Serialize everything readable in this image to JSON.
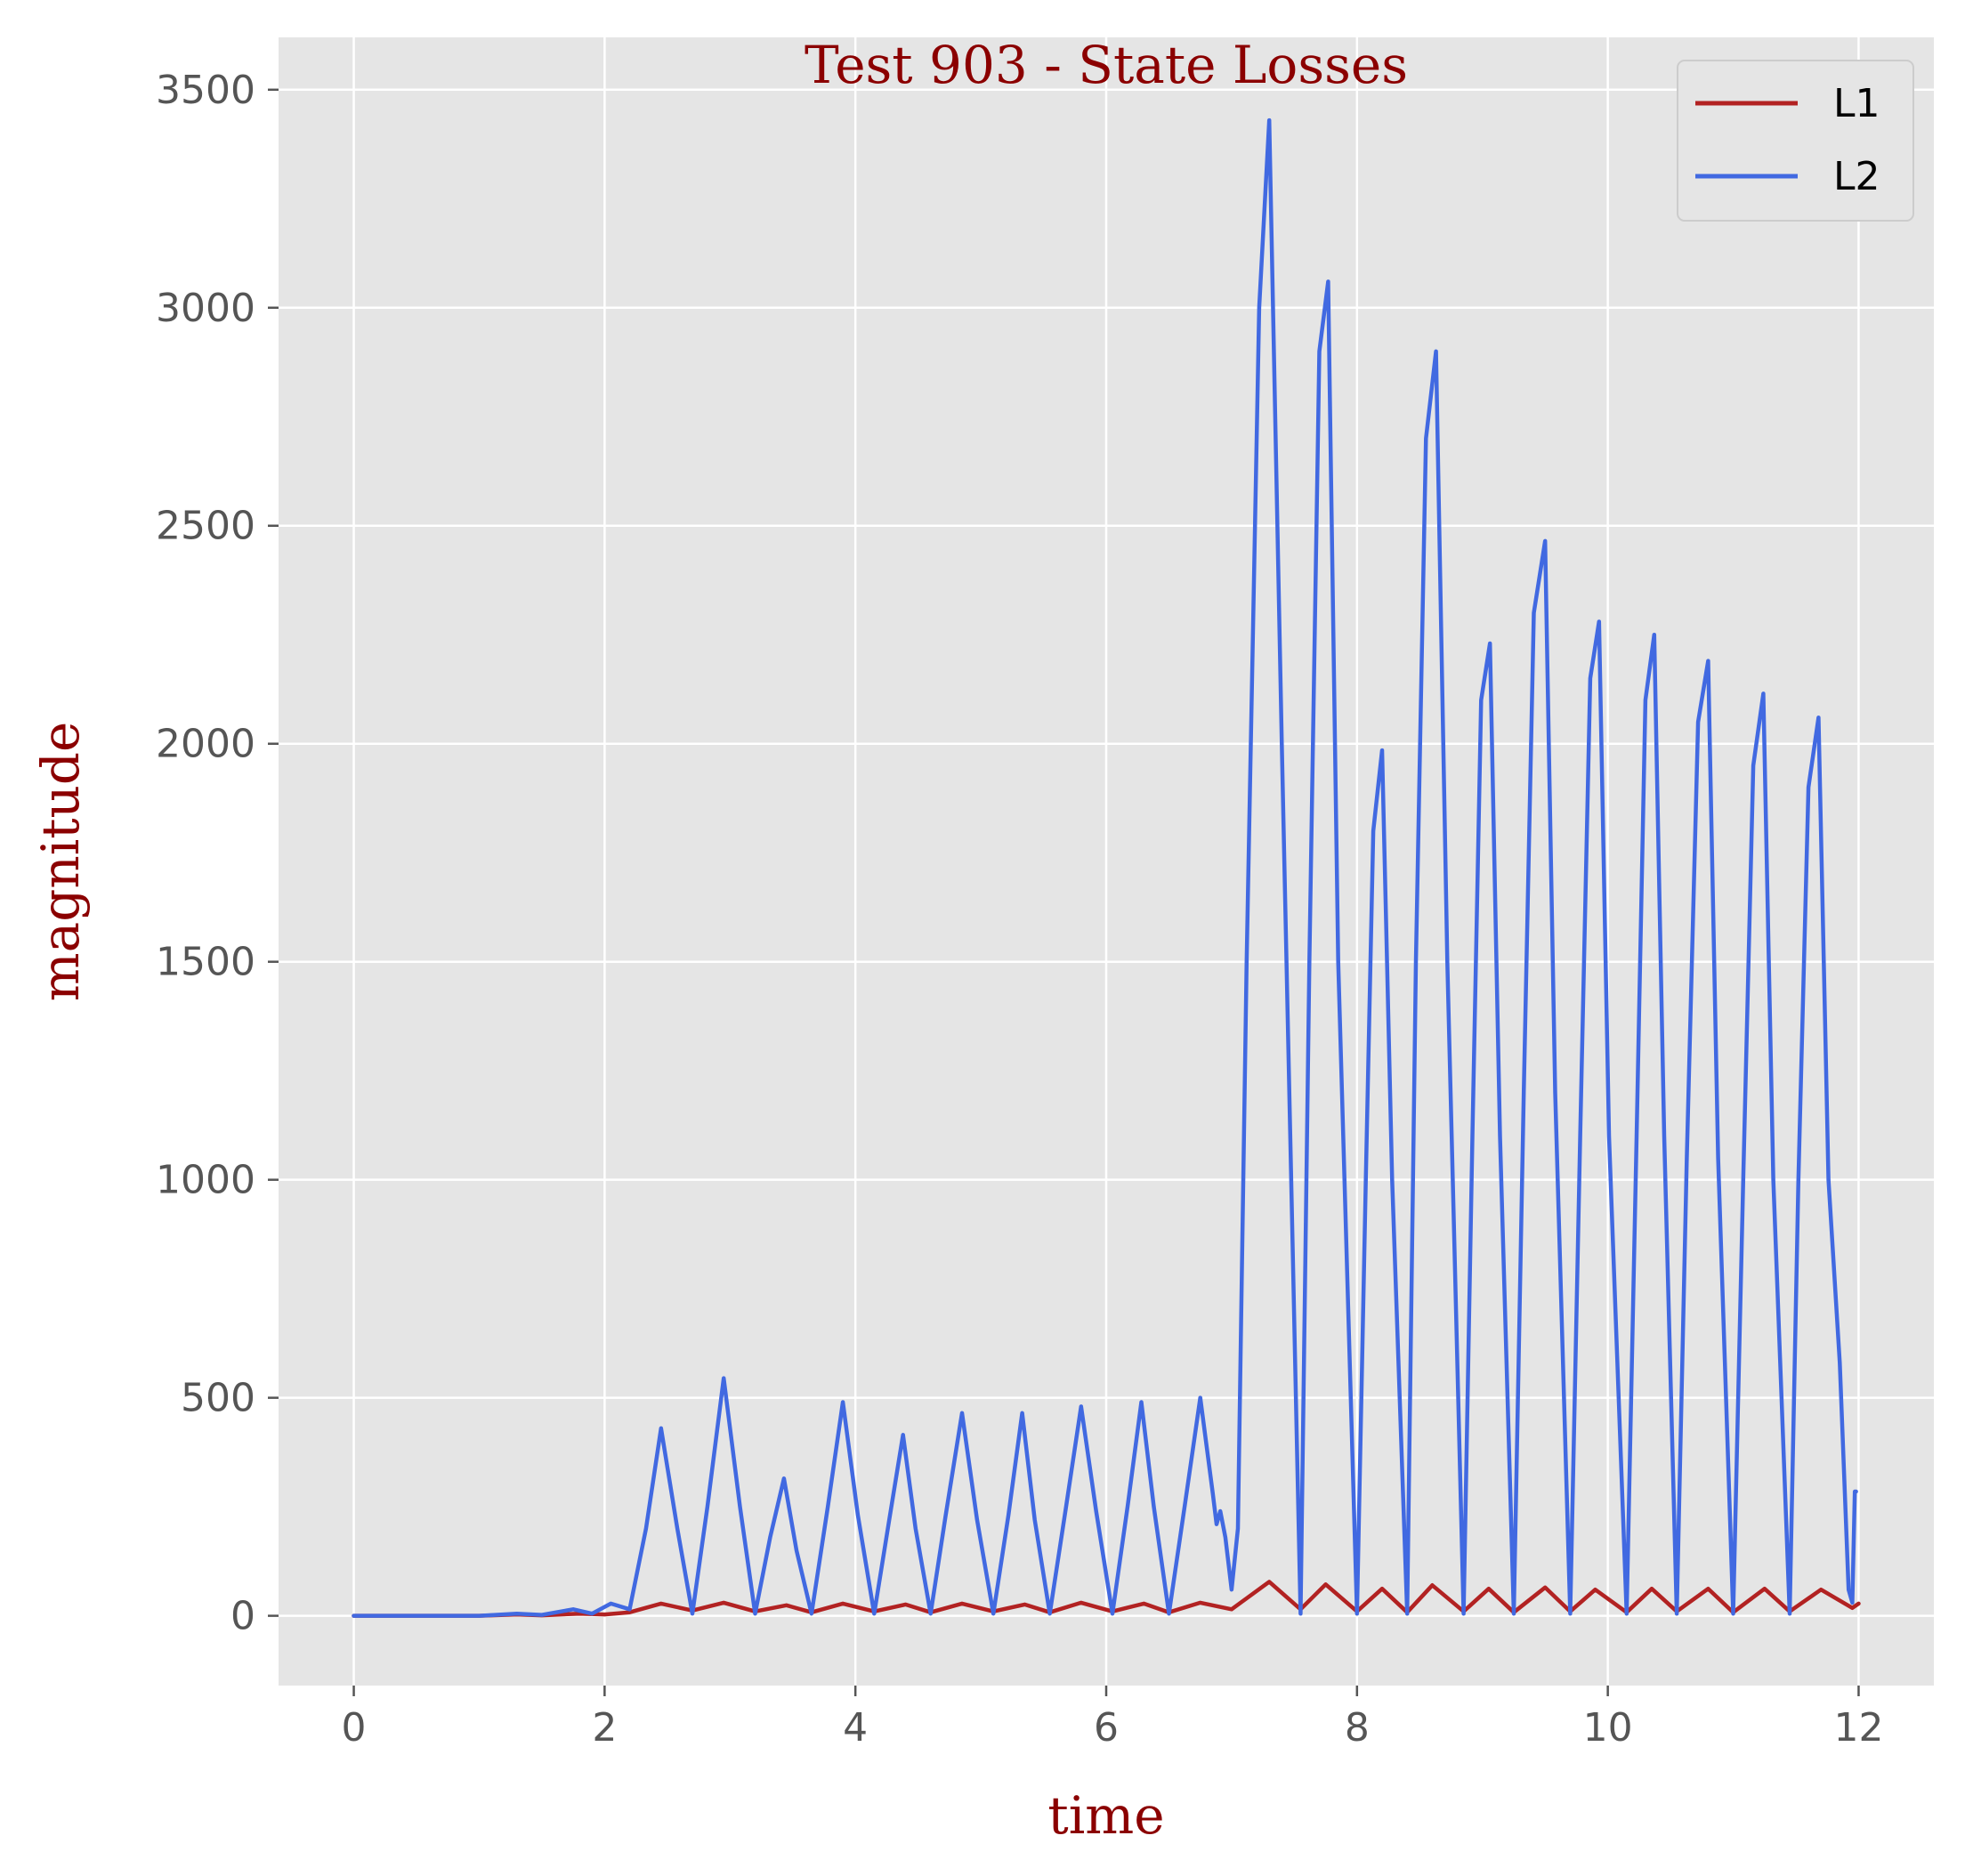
{
  "chart_data": {
    "type": "line",
    "title": "Test 903 - State Losses",
    "xlabel": "time",
    "ylabel": "magnitude",
    "xlim": [
      -0.6,
      12.6
    ],
    "ylim": [
      -160,
      3620
    ],
    "xticks": [
      0,
      2,
      4,
      6,
      8,
      10,
      12
    ],
    "yticks": [
      0,
      500,
      1000,
      1500,
      2000,
      2500,
      3000,
      3500
    ],
    "grid": true,
    "legend_position": "top-right",
    "colors": {
      "background": "#e5e5e5",
      "grid": "#ffffff",
      "title": "#8b0000"
    },
    "series": [
      {
        "name": "L1",
        "color": "#b22222",
        "x": [
          0,
          0.5,
          1.0,
          1.3,
          1.5,
          1.8,
          2.0,
          2.2,
          2.45,
          2.7,
          2.95,
          3.2,
          3.45,
          3.65,
          3.9,
          4.15,
          4.4,
          4.6,
          4.85,
          5.1,
          5.35,
          5.55,
          5.8,
          6.05,
          6.3,
          6.5,
          6.75,
          7.0,
          7.3,
          7.55,
          7.75,
          8.0,
          8.2,
          8.4,
          8.6,
          8.85,
          9.05,
          9.25,
          9.5,
          9.7,
          9.9,
          10.15,
          10.35,
          10.55,
          10.8,
          11.0,
          11.25,
          11.45,
          11.7,
          11.95,
          12.0
        ],
        "values": [
          0,
          0,
          0,
          3,
          1,
          5,
          3,
          8,
          28,
          12,
          30,
          10,
          24,
          8,
          28,
          10,
          26,
          8,
          28,
          10,
          26,
          8,
          30,
          10,
          28,
          8,
          30,
          15,
          78,
          15,
          72,
          10,
          62,
          8,
          70,
          10,
          62,
          8,
          65,
          10,
          60,
          8,
          62,
          10,
          62,
          8,
          62,
          10,
          60,
          18,
          28
        ]
      },
      {
        "name": "L2",
        "color": "#4169e1",
        "x": [
          0,
          0.5,
          1.0,
          1.3,
          1.5,
          1.75,
          1.9,
          2.05,
          2.2,
          2.33,
          2.45,
          2.58,
          2.7,
          2.82,
          2.95,
          3.08,
          3.2,
          3.32,
          3.43,
          3.53,
          3.65,
          3.78,
          3.9,
          4.02,
          4.15,
          4.27,
          4.38,
          4.48,
          4.6,
          4.72,
          4.85,
          4.97,
          5.1,
          5.22,
          5.33,
          5.43,
          5.55,
          5.68,
          5.8,
          5.92,
          6.05,
          6.17,
          6.28,
          6.38,
          6.5,
          6.63,
          6.75,
          6.85,
          6.88,
          6.91,
          6.95,
          7.0,
          7.05,
          7.12,
          7.22,
          7.3,
          7.4,
          7.55,
          7.62,
          7.7,
          7.77,
          7.85,
          8.0,
          8.07,
          8.13,
          8.2,
          8.28,
          8.4,
          8.47,
          8.55,
          8.63,
          8.72,
          8.85,
          8.92,
          8.99,
          9.06,
          9.14,
          9.25,
          9.33,
          9.41,
          9.5,
          9.58,
          9.7,
          9.78,
          9.86,
          9.93,
          10.01,
          10.15,
          10.23,
          10.3,
          10.37,
          10.45,
          10.55,
          10.63,
          10.72,
          10.8,
          10.88,
          11.0,
          11.08,
          11.16,
          11.24,
          11.32,
          11.45,
          11.52,
          11.6,
          11.68,
          11.76,
          11.85,
          11.92,
          11.95,
          11.97,
          11.98
        ],
        "values": [
          0,
          0,
          0,
          5,
          2,
          15,
          5,
          28,
          15,
          200,
          430,
          200,
          5,
          250,
          545,
          250,
          5,
          180,
          315,
          150,
          5,
          250,
          490,
          230,
          5,
          220,
          415,
          200,
          5,
          230,
          465,
          220,
          5,
          230,
          465,
          220,
          5,
          250,
          480,
          240,
          5,
          250,
          490,
          250,
          5,
          260,
          500,
          280,
          210,
          240,
          180,
          60,
          200,
          1500,
          3000,
          3430,
          2000,
          5,
          1500,
          2900,
          3060,
          1500,
          5,
          1000,
          1800,
          1985,
          1000,
          5,
          1500,
          2700,
          2900,
          1500,
          5,
          1100,
          2100,
          2230,
          1100,
          5,
          1200,
          2300,
          2465,
          1200,
          5,
          1100,
          2150,
          2280,
          1100,
          5,
          1100,
          2100,
          2250,
          1100,
          5,
          1050,
          2050,
          2190,
          1050,
          5,
          1000,
          1950,
          2115,
          1000,
          5,
          1000,
          1900,
          2060,
          1000,
          580,
          60,
          30,
          285,
          285
        ]
      }
    ]
  }
}
